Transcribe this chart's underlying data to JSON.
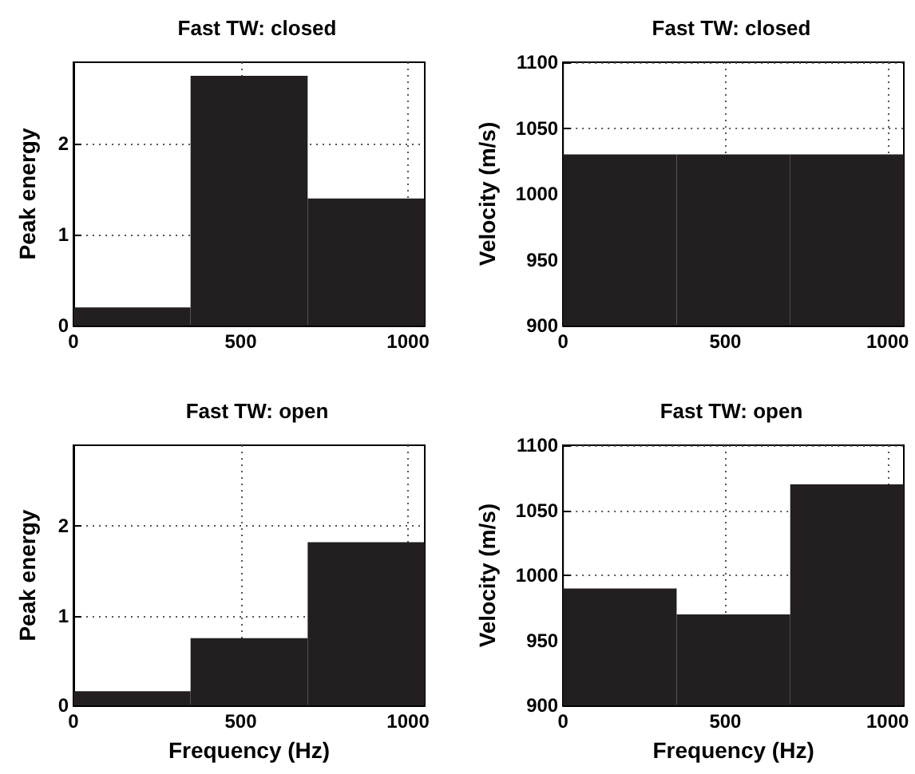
{
  "chart_data": [
    {
      "type": "histogram",
      "title": "Fast TW: closed",
      "ylabel": "Peak energy",
      "bins": [
        0,
        350,
        700,
        1050
      ],
      "values": [
        0.2,
        2.75,
        1.4
      ],
      "color": "#231f20",
      "xlim": [
        0,
        1050
      ],
      "xticks": [
        0,
        500,
        1000
      ],
      "ylim": [
        0,
        2.9
      ],
      "yticks": [
        0,
        1,
        2
      ],
      "grid": true
    },
    {
      "type": "histogram",
      "title": "Fast TW: closed",
      "ylabel": "Velocity (m/s)",
      "bins": [
        0,
        350,
        700,
        1050
      ],
      "values": [
        1030,
        1030,
        1030
      ],
      "color": "#231f20",
      "xlim": [
        0,
        1050
      ],
      "xticks": [
        0,
        500,
        1000
      ],
      "ylim": [
        900,
        1100
      ],
      "yticks": [
        900,
        950,
        1000,
        1050,
        1100
      ],
      "grid": true
    },
    {
      "type": "histogram",
      "title": "Fast TW: open",
      "xlabel": "Frequency (Hz)",
      "ylabel": "Peak energy",
      "bins": [
        0,
        350,
        700,
        1050
      ],
      "values": [
        0.16,
        0.75,
        1.82
      ],
      "color": "#231f20",
      "xlim": [
        0,
        1050
      ],
      "xticks": [
        0,
        500,
        1000
      ],
      "ylim": [
        0,
        2.9
      ],
      "yticks": [
        0,
        1,
        2
      ],
      "grid": true
    },
    {
      "type": "histogram",
      "title": "Fast TW: open",
      "xlabel": "Frequency (Hz)",
      "ylabel": "Velocity (m/s)",
      "bins": [
        0,
        350,
        700,
        1050
      ],
      "values": [
        990,
        970,
        1070
      ],
      "color": "#231f20",
      "xlim": [
        0,
        1050
      ],
      "xticks": [
        0,
        500,
        1000
      ],
      "ylim": [
        900,
        1100
      ],
      "yticks": [
        900,
        950,
        1000,
        1050,
        1100
      ],
      "grid": true
    }
  ]
}
